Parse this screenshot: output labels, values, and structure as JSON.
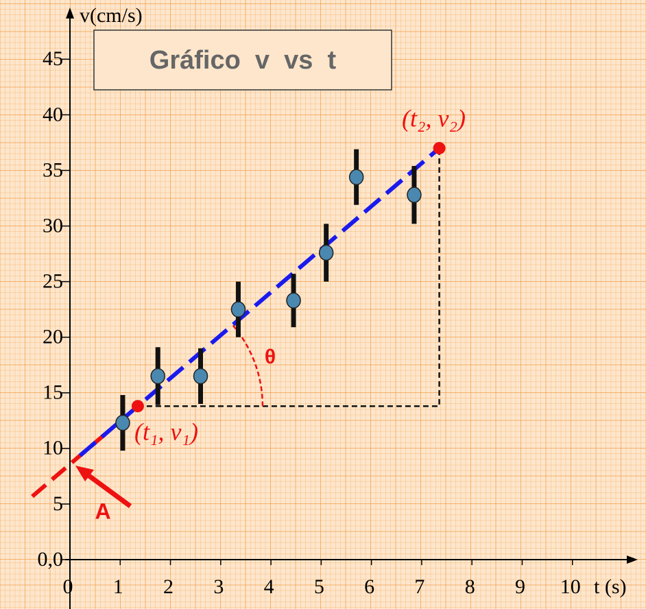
{
  "chart_data": {
    "type": "scatter",
    "title": "Gráfico  v  vs  t",
    "x_label": "t (s)",
    "y_label": "v(cm/s)",
    "x": [
      1.05,
      1.75,
      2.6,
      3.35,
      4.45,
      5.1,
      5.7,
      6.85
    ],
    "values": [
      12.3,
      16.5,
      16.5,
      22.5,
      23.3,
      27.6,
      34.4,
      32.8
    ],
    "errors": [
      2.5,
      2.6,
      2.5,
      2.5,
      2.4,
      2.6,
      2.5,
      2.6
    ],
    "color": "#4a88b0",
    "xlim": [
      0,
      11.3
    ],
    "ylim": [
      0,
      49.4
    ],
    "xticks": [
      0,
      1,
      2,
      3,
      4,
      5,
      6,
      7,
      8,
      9,
      10
    ],
    "yticks": [
      {
        "value": 0,
        "label": "0,0"
      },
      5,
      10,
      15,
      20,
      25,
      30,
      35,
      40,
      45
    ],
    "fit_points": [
      {
        "label": "(t₁, v₁)",
        "t": 1.35,
        "v": 13.8
      },
      {
        "label": "(t₂, v₂)",
        "t": 7.35,
        "v": 37
      }
    ],
    "angle_label": "θ",
    "intercept_label": "A",
    "fit_color": "#1a1aee",
    "point_color": "#ee1111"
  }
}
